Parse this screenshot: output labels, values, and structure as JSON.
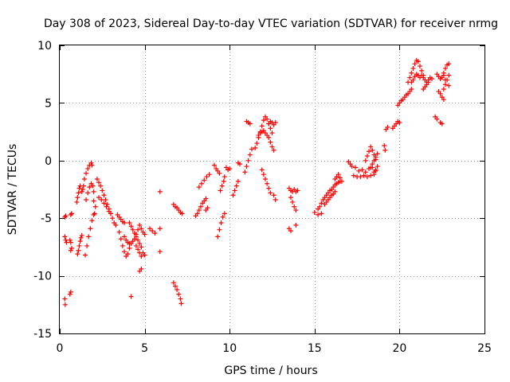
{
  "chart_data": {
    "type": "scatter",
    "title": "Day 308 of 2023, Sidereal Day-to-day VTEC variation (SDTVAR) for receiver nrmg",
    "xlabel": "GPS time / hours",
    "ylabel": "SDTVAR / TECUs",
    "xlim": [
      0,
      25
    ],
    "ylim": [
      -15,
      10
    ],
    "x_ticks": [
      0,
      5,
      10,
      15,
      20,
      25
    ],
    "y_ticks": [
      -15,
      -10,
      -5,
      0,
      5,
      10
    ],
    "x_tick_labels": [
      "0",
      "5",
      "10",
      "15",
      "20",
      "25"
    ],
    "y_tick_labels": [
      "-15",
      "-10",
      "-5",
      "0",
      "5",
      "10"
    ],
    "grid": true,
    "legend": "none",
    "marker": "plus",
    "marker_color": "#ff0000",
    "segments": [
      {
        "x": [
          0.3,
          0.35,
          0.4
        ],
        "y": [
          -6.6,
          -6.9,
          -7.1
        ]
      },
      {
        "x": [
          0.3,
          0.32
        ],
        "y": [
          -12.0,
          -12.5
        ]
      },
      {
        "x": [
          0.3,
          0.35
        ],
        "y": [
          -4.9,
          -4.8
        ]
      },
      {
        "x": [
          0.6,
          0.65
        ],
        "y": [
          -11.6,
          -11.4
        ]
      },
      {
        "x": [
          0.65,
          0.7
        ],
        "y": [
          -4.7,
          -4.6
        ]
      },
      {
        "x": [
          0.6,
          0.65
        ],
        "y": [
          -6.9,
          -7.1
        ]
      },
      {
        "x": [
          0.65,
          0.7
        ],
        "y": [
          -7.8,
          -7.6
        ]
      },
      {
        "x": [
          1.0,
          1.05,
          1.1,
          1.15,
          1.2
        ],
        "y": [
          -3.6,
          -3.2,
          -2.8,
          -2.4,
          -2.2
        ]
      },
      {
        "x": [
          1.05,
          1.1,
          1.15,
          1.2,
          1.25,
          1.3
        ],
        "y": [
          -8.1,
          -7.8,
          -7.4,
          -7.0,
          -6.7,
          -6.5
        ]
      },
      {
        "x": [
          1.3,
          1.35,
          1.4
        ],
        "y": [
          -2.7,
          -2.5,
          -2.2
        ]
      },
      {
        "x": [
          1.45,
          1.55,
          1.65,
          1.75,
          1.85,
          1.9
        ],
        "y": [
          -1.6,
          -1.1,
          -0.7,
          -0.4,
          -0.2,
          -0.4
        ]
      },
      {
        "x": [
          1.5,
          1.6,
          1.7,
          1.8,
          1.9,
          2.0,
          2.05
        ],
        "y": [
          -8.2,
          -7.4,
          -6.6,
          -5.9,
          -5.2,
          -4.7,
          -4.6
        ]
      },
      {
        "x": [
          1.55,
          1.65,
          1.75,
          1.85,
          1.95,
          2.0
        ],
        "y": [
          -3.4,
          -2.8,
          -2.3,
          -2.0,
          -2.2,
          -2.7
        ]
      },
      {
        "x": [
          2.0,
          2.1
        ],
        "y": [
          -3.5,
          -4.0
        ]
      },
      {
        "x": [
          2.2,
          2.3,
          2.4,
          2.5,
          2.6,
          2.7,
          2.8,
          2.9,
          3.0,
          3.1,
          3.2,
          3.3
        ],
        "y": [
          -1.6,
          -1.9,
          -2.2,
          -2.6,
          -3.0,
          -3.4,
          -3.8,
          -4.2,
          -4.6,
          -5.0,
          -5.4,
          -5.6
        ]
      },
      {
        "x": [
          2.3,
          2.45,
          2.6,
          2.75,
          2.9,
          3.0
        ],
        "y": [
          -3.2,
          -3.4,
          -3.7,
          -4.0,
          -4.4,
          -4.6
        ]
      },
      {
        "x": [
          3.4,
          3.5,
          3.6,
          3.7,
          3.8
        ],
        "y": [
          -4.7,
          -4.9,
          -5.1,
          -5.3,
          -5.4
        ]
      },
      {
        "x": [
          3.5,
          3.6,
          3.7,
          3.8,
          3.9,
          4.0,
          4.1
        ],
        "y": [
          -6.2,
          -6.8,
          -7.4,
          -7.9,
          -8.3,
          -8.1,
          -7.6
        ]
      },
      {
        "x": [
          3.8,
          3.9,
          4.0,
          4.1
        ],
        "y": [
          -6.6,
          -6.9,
          -7.1,
          -7.2
        ]
      },
      {
        "x": [
          4.2
        ],
        "y": [
          -11.8
        ]
      },
      {
        "x": [
          4.1,
          4.2,
          4.3,
          4.4,
          4.5,
          4.6,
          4.7,
          4.8,
          4.9,
          5.0
        ],
        "y": [
          -5.4,
          -5.7,
          -6.0,
          -6.3,
          -6.6,
          -6.9,
          -7.2,
          -7.5,
          -8.0,
          -8.2
        ]
      },
      {
        "x": [
          4.2,
          4.3,
          4.4,
          4.5,
          4.6,
          4.7,
          4.8,
          4.9,
          5.0
        ],
        "y": [
          -7.2,
          -7.0,
          -6.8,
          -6.4,
          -6.0,
          -5.6,
          -5.9,
          -6.2,
          -6.4
        ]
      },
      {
        "x": [
          4.5,
          4.6,
          4.7,
          4.8
        ],
        "y": [
          -7.4,
          -7.7,
          -8.0,
          -8.3
        ]
      },
      {
        "x": [
          4.7,
          4.8
        ],
        "y": [
          -9.6,
          -9.4
        ]
      },
      {
        "x": [
          5.3,
          5.45,
          5.6
        ],
        "y": [
          -5.9,
          -6.1,
          -6.3
        ]
      },
      {
        "x": [
          5.9
        ],
        "y": [
          -5.9
        ]
      },
      {
        "x": [
          5.9
        ],
        "y": [
          -7.9
        ]
      },
      {
        "x": [
          5.9
        ],
        "y": [
          -2.7
        ]
      },
      {
        "x": [
          6.7,
          6.8,
          6.9,
          7.0,
          7.1,
          7.2
        ],
        "y": [
          -3.8,
          -4.0,
          -4.1,
          -4.3,
          -4.5,
          -4.6
        ]
      },
      {
        "x": [
          6.7,
          6.8,
          6.9,
          7.0,
          7.1,
          7.15
        ],
        "y": [
          -10.6,
          -10.9,
          -11.2,
          -11.6,
          -12.0,
          -12.4
        ]
      },
      {
        "x": [
          8.0,
          8.1,
          8.2,
          8.3,
          8.4,
          8.5,
          8.6
        ],
        "y": [
          -4.8,
          -4.6,
          -4.3,
          -4.0,
          -3.7,
          -3.5,
          -3.3
        ]
      },
      {
        "x": [
          8.2,
          8.35,
          8.5,
          8.65,
          8.8
        ],
        "y": [
          -2.3,
          -2.0,
          -1.7,
          -1.4,
          -1.2
        ]
      },
      {
        "x": [
          8.6,
          8.7
        ],
        "y": [
          -4.3,
          -4.1
        ]
      },
      {
        "x": [
          9.1,
          9.2,
          9.3,
          9.4
        ],
        "y": [
          -0.4,
          -0.7,
          -0.9,
          -1.1
        ]
      },
      {
        "x": [
          9.3,
          9.4,
          9.5,
          9.6,
          9.7
        ],
        "y": [
          -6.6,
          -6.0,
          -5.4,
          -4.9,
          -4.6
        ]
      },
      {
        "x": [
          9.45,
          9.55,
          9.65,
          9.7
        ],
        "y": [
          -2.6,
          -2.2,
          -1.8,
          -1.4
        ]
      },
      {
        "x": [
          9.8,
          9.9,
          10.0
        ],
        "y": [
          -0.6,
          -0.8,
          -0.7
        ]
      },
      {
        "x": [
          10.2,
          10.3,
          10.4,
          10.5
        ],
        "y": [
          -3.0,
          -2.6,
          -2.2,
          -1.8
        ]
      },
      {
        "x": [
          10.5,
          10.6
        ],
        "y": [
          -0.2,
          -0.3
        ]
      },
      {
        "x": [
          10.9,
          11.0,
          11.1,
          11.2,
          11.3
        ],
        "y": [
          -1.0,
          -0.5,
          0.0,
          0.5,
          1.0
        ]
      },
      {
        "x": [
          11.0,
          11.1,
          11.2
        ],
        "y": [
          3.4,
          3.3,
          3.2
        ]
      },
      {
        "x": [
          11.5,
          11.6,
          11.7,
          11.8,
          11.9,
          12.0,
          12.1,
          12.2,
          12.3,
          12.4,
          12.5
        ],
        "y": [
          1.1,
          1.5,
          2.0,
          2.5,
          3.0,
          3.5,
          3.8,
          3.6,
          3.2,
          2.8,
          2.4
        ]
      },
      {
        "x": [
          11.7,
          11.8,
          11.9,
          12.0,
          12.1,
          12.2,
          12.3,
          12.4,
          12.5,
          12.6
        ],
        "y": [
          2.2,
          2.4,
          2.5,
          2.6,
          2.4,
          2.2,
          2.0,
          1.6,
          1.2,
          0.9
        ]
      },
      {
        "x": [
          12.3,
          12.4,
          12.5,
          12.6,
          12.7
        ],
        "y": [
          3.2,
          3.4,
          3.3,
          3.1,
          3.3
        ]
      },
      {
        "x": [
          11.9,
          12.0,
          12.1,
          12.2,
          12.3,
          12.4
        ],
        "y": [
          -0.8,
          -1.2,
          -1.6,
          -2.0,
          -2.4,
          -2.8
        ]
      },
      {
        "x": [
          12.6,
          12.7
        ],
        "y": [
          -3.0,
          -3.4
        ]
      },
      {
        "x": [
          13.5,
          13.6,
          13.7,
          13.8,
          13.9,
          14.0
        ],
        "y": [
          -2.4,
          -2.6,
          -2.7,
          -2.5,
          -2.7,
          -2.6
        ]
      },
      {
        "x": [
          13.6,
          13.7,
          13.8,
          13.9
        ],
        "y": [
          -3.2,
          -3.6,
          -4.0,
          -4.3
        ]
      },
      {
        "x": [
          13.5,
          13.6,
          13.9
        ],
        "y": [
          -5.9,
          -6.1,
          -5.6
        ]
      },
      {
        "x": [
          15.0,
          15.2,
          15.4
        ],
        "y": [
          -4.5,
          -4.7,
          -4.6
        ]
      },
      {
        "x": [
          15.2,
          15.3,
          15.4,
          15.5,
          15.6,
          15.7,
          15.8,
          15.9,
          16.0,
          16.1,
          16.2,
          16.3,
          16.4,
          16.5
        ],
        "y": [
          -4.2,
          -4.0,
          -3.7,
          -3.4,
          -3.2,
          -3.0,
          -2.8,
          -2.6,
          -2.5,
          -2.3,
          -2.1,
          -2.0,
          -1.9,
          -1.8
        ]
      },
      {
        "x": [
          15.6,
          15.7,
          15.8,
          15.9,
          16.0,
          16.1,
          16.2
        ],
        "y": [
          -3.8,
          -3.6,
          -3.4,
          -3.2,
          -3.0,
          -2.9,
          -2.7
        ]
      },
      {
        "x": [
          16.2,
          16.3,
          16.4,
          16.5,
          16.6
        ],
        "y": [
          -1.6,
          -1.4,
          -1.2,
          -1.5,
          -1.8
        ]
      },
      {
        "x": [
          17.0,
          17.1,
          17.2
        ],
        "y": [
          -0.1,
          -0.3,
          -0.5
        ]
      },
      {
        "x": [
          17.3,
          17.5,
          17.7,
          17.9,
          18.1,
          18.3,
          18.5
        ],
        "y": [
          -1.3,
          -1.4,
          -1.4,
          -1.3,
          -1.4,
          -1.3,
          -1.2
        ]
      },
      {
        "x": [
          17.4,
          17.6,
          17.8,
          18.0,
          18.2,
          18.4,
          18.6
        ],
        "y": [
          -0.6,
          -0.9,
          -0.8,
          -1.0,
          -0.7,
          -0.6,
          -0.9
        ]
      },
      {
        "x": [
          18.0,
          18.1,
          18.2,
          18.3,
          18.4,
          18.5,
          18.6
        ],
        "y": [
          0.0,
          0.4,
          0.8,
          1.2,
          0.9,
          0.5,
          0.1
        ]
      },
      {
        "x": [
          18.3,
          18.4,
          18.5,
          18.6,
          18.7
        ],
        "y": [
          -0.6,
          -0.3,
          0.0,
          0.3,
          0.6
        ]
      },
      {
        "x": [
          18.5,
          18.6,
          18.7
        ],
        "y": [
          -1.0,
          -0.8,
          -0.5
        ]
      },
      {
        "x": [
          19.1,
          19.15
        ],
        "y": [
          1.3,
          0.9
        ]
      },
      {
        "x": [
          19.2,
          19.3
        ],
        "y": [
          2.7,
          2.9
        ]
      },
      {
        "x": [
          19.6,
          19.7,
          19.8,
          19.9,
          20.0
        ],
        "y": [
          2.8,
          3.0,
          3.2,
          3.4,
          3.3
        ]
      },
      {
        "x": [
          19.9,
          20.0,
          20.1,
          20.2,
          20.3,
          20.4,
          20.5,
          20.6,
          20.7
        ],
        "y": [
          4.8,
          5.0,
          5.2,
          5.3,
          5.5,
          5.7,
          5.8,
          6.0,
          6.2
        ]
      },
      {
        "x": [
          20.5,
          20.6,
          20.7,
          20.8,
          20.9,
          21.0,
          21.1,
          21.2,
          21.3,
          21.4
        ],
        "y": [
          6.8,
          7.2,
          7.6,
          8.0,
          8.4,
          8.7,
          8.6,
          8.2,
          7.8,
          7.4
        ]
      },
      {
        "x": [
          20.7,
          20.8,
          20.9,
          21.0,
          21.1,
          21.2
        ],
        "y": [
          6.8,
          7.0,
          7.3,
          7.5,
          7.4,
          7.2
        ]
      },
      {
        "x": [
          21.3,
          21.4,
          21.5,
          21.6,
          21.7,
          21.8,
          21.9
        ],
        "y": [
          7.4,
          7.2,
          7.0,
          6.8,
          7.0,
          7.2,
          7.1
        ]
      },
      {
        "x": [
          21.4,
          21.5,
          21.6,
          21.7
        ],
        "y": [
          6.2,
          6.4,
          6.6,
          6.8
        ]
      },
      {
        "x": [
          22.2,
          22.3,
          22.4,
          22.5,
          22.6,
          22.7
        ],
        "y": [
          7.5,
          7.3,
          7.1,
          7.2,
          7.4,
          7.0
        ]
      },
      {
        "x": [
          22.3,
          22.4,
          22.5,
          22.6
        ],
        "y": [
          6.0,
          5.8,
          5.5,
          5.3
        ]
      },
      {
        "x": [
          22.6,
          22.7,
          22.8,
          22.9
        ],
        "y": [
          6.2,
          6.6,
          7.0,
          7.4
        ]
      },
      {
        "x": [
          22.6,
          22.7,
          22.8,
          22.9
        ],
        "y": [
          7.6,
          8.0,
          8.3,
          8.4
        ]
      },
      {
        "x": [
          22.9
        ],
        "y": [
          6.5
        ]
      },
      {
        "x": [
          22.1,
          22.2
        ],
        "y": [
          3.8,
          3.6
        ]
      },
      {
        "x": [
          22.4,
          22.5
        ],
        "y": [
          3.3,
          3.2
        ]
      }
    ]
  }
}
